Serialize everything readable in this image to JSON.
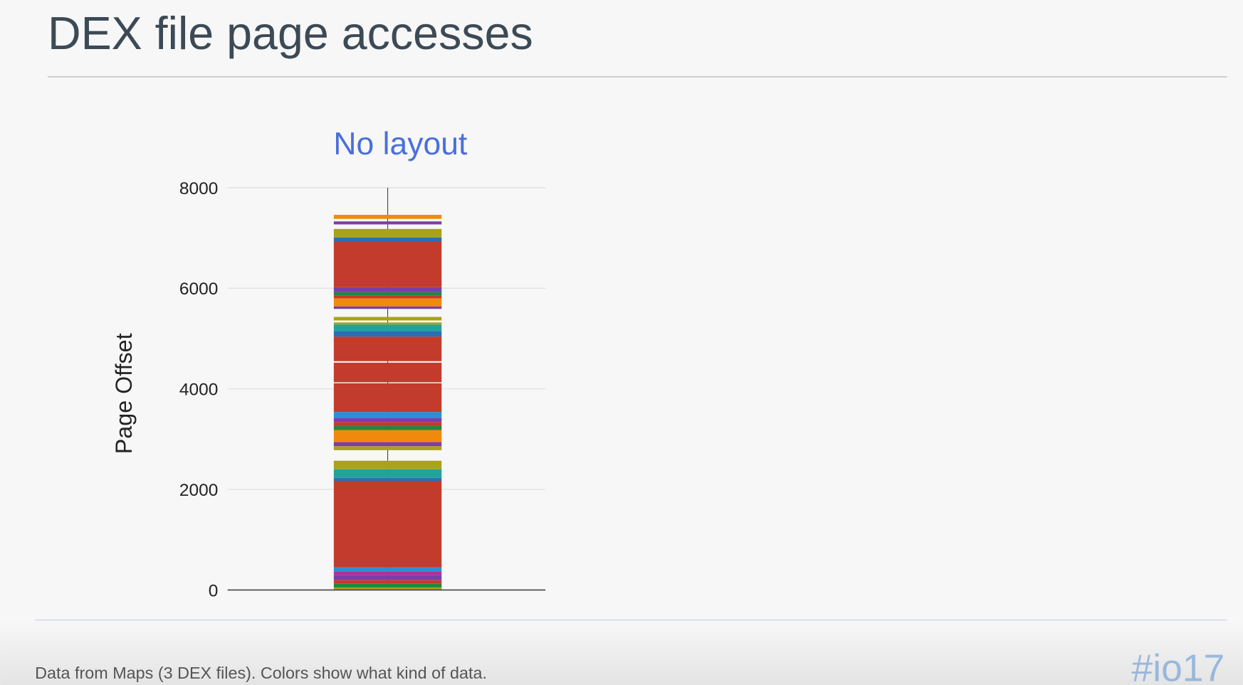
{
  "header": {
    "title": "DEX file page accesses"
  },
  "chart_data": {
    "type": "range-bar",
    "title": "No layout",
    "y_label": "Page Offset",
    "ylim": [
      0,
      8000
    ],
    "yticks": [
      0,
      2000,
      4000,
      6000,
      8000
    ],
    "grid": true,
    "segments": [
      {
        "range": [
          0,
          50
        ],
        "color": "#a9a21a"
      },
      {
        "range": [
          50,
          130
        ],
        "color": "#1d8a3a"
      },
      {
        "range": [
          130,
          200
        ],
        "color": "#c23b2c"
      },
      {
        "range": [
          200,
          300
        ],
        "color": "#7b3ea7"
      },
      {
        "range": [
          300,
          370
        ],
        "color": "#b0309a"
      },
      {
        "range": [
          370,
          450
        ],
        "color": "#2a8fd6"
      },
      {
        "range": [
          450,
          2170
        ],
        "color": "#c23b2c"
      },
      {
        "range": [
          2170,
          2230
        ],
        "color": "#2a6fb6"
      },
      {
        "range": [
          2230,
          2400
        ],
        "color": "#22a39a"
      },
      {
        "range": [
          2400,
          2570
        ],
        "color": "#a9a21a"
      },
      {
        "range": [
          2780,
          2860
        ],
        "color": "#a9a21a"
      },
      {
        "range": [
          2860,
          2940
        ],
        "color": "#7b3ea7"
      },
      {
        "range": [
          2940,
          3180
        ],
        "color": "#f08a0c"
      },
      {
        "range": [
          3180,
          3260
        ],
        "color": "#1d8a3a"
      },
      {
        "range": [
          3260,
          3340
        ],
        "color": "#c23b2c"
      },
      {
        "range": [
          3340,
          3420
        ],
        "color": "#7b3ea7"
      },
      {
        "range": [
          3420,
          3540
        ],
        "color": "#2a8fd6"
      },
      {
        "range": [
          3540,
          4110
        ],
        "color": "#c23b2c"
      },
      {
        "range": [
          4130,
          4520
        ],
        "color": "#c23b2c"
      },
      {
        "range": [
          4550,
          5040
        ],
        "color": "#c23b2c"
      },
      {
        "range": [
          5040,
          5150
        ],
        "color": "#2a6fb6"
      },
      {
        "range": [
          5150,
          5280
        ],
        "color": "#22a39a"
      },
      {
        "range": [
          5280,
          5320
        ],
        "color": "#a9a21a"
      },
      {
        "range": [
          5360,
          5430
        ],
        "color": "#a9a21a"
      },
      {
        "range": [
          5590,
          5640
        ],
        "color": "#7b3ea7"
      },
      {
        "range": [
          5640,
          5800
        ],
        "color": "#f08a0c"
      },
      {
        "range": [
          5800,
          5860
        ],
        "color": "#c23b2c"
      },
      {
        "range": [
          5860,
          5920
        ],
        "color": "#1d8a3a"
      },
      {
        "range": [
          5920,
          6020
        ],
        "color": "#7b3ea7"
      },
      {
        "range": [
          6020,
          6930
        ],
        "color": "#c23b2c"
      },
      {
        "range": [
          6930,
          7010
        ],
        "color": "#2a6fb6"
      },
      {
        "range": [
          7010,
          7180
        ],
        "color": "#a9a21a"
      },
      {
        "range": [
          7270,
          7330
        ],
        "color": "#7b3ea7"
      },
      {
        "range": [
          7380,
          7460
        ],
        "color": "#f08a0c"
      }
    ]
  },
  "footer": {
    "note": "Data from Maps (3 DEX files).  Colors show what kind of data.",
    "logo": "#io17"
  }
}
